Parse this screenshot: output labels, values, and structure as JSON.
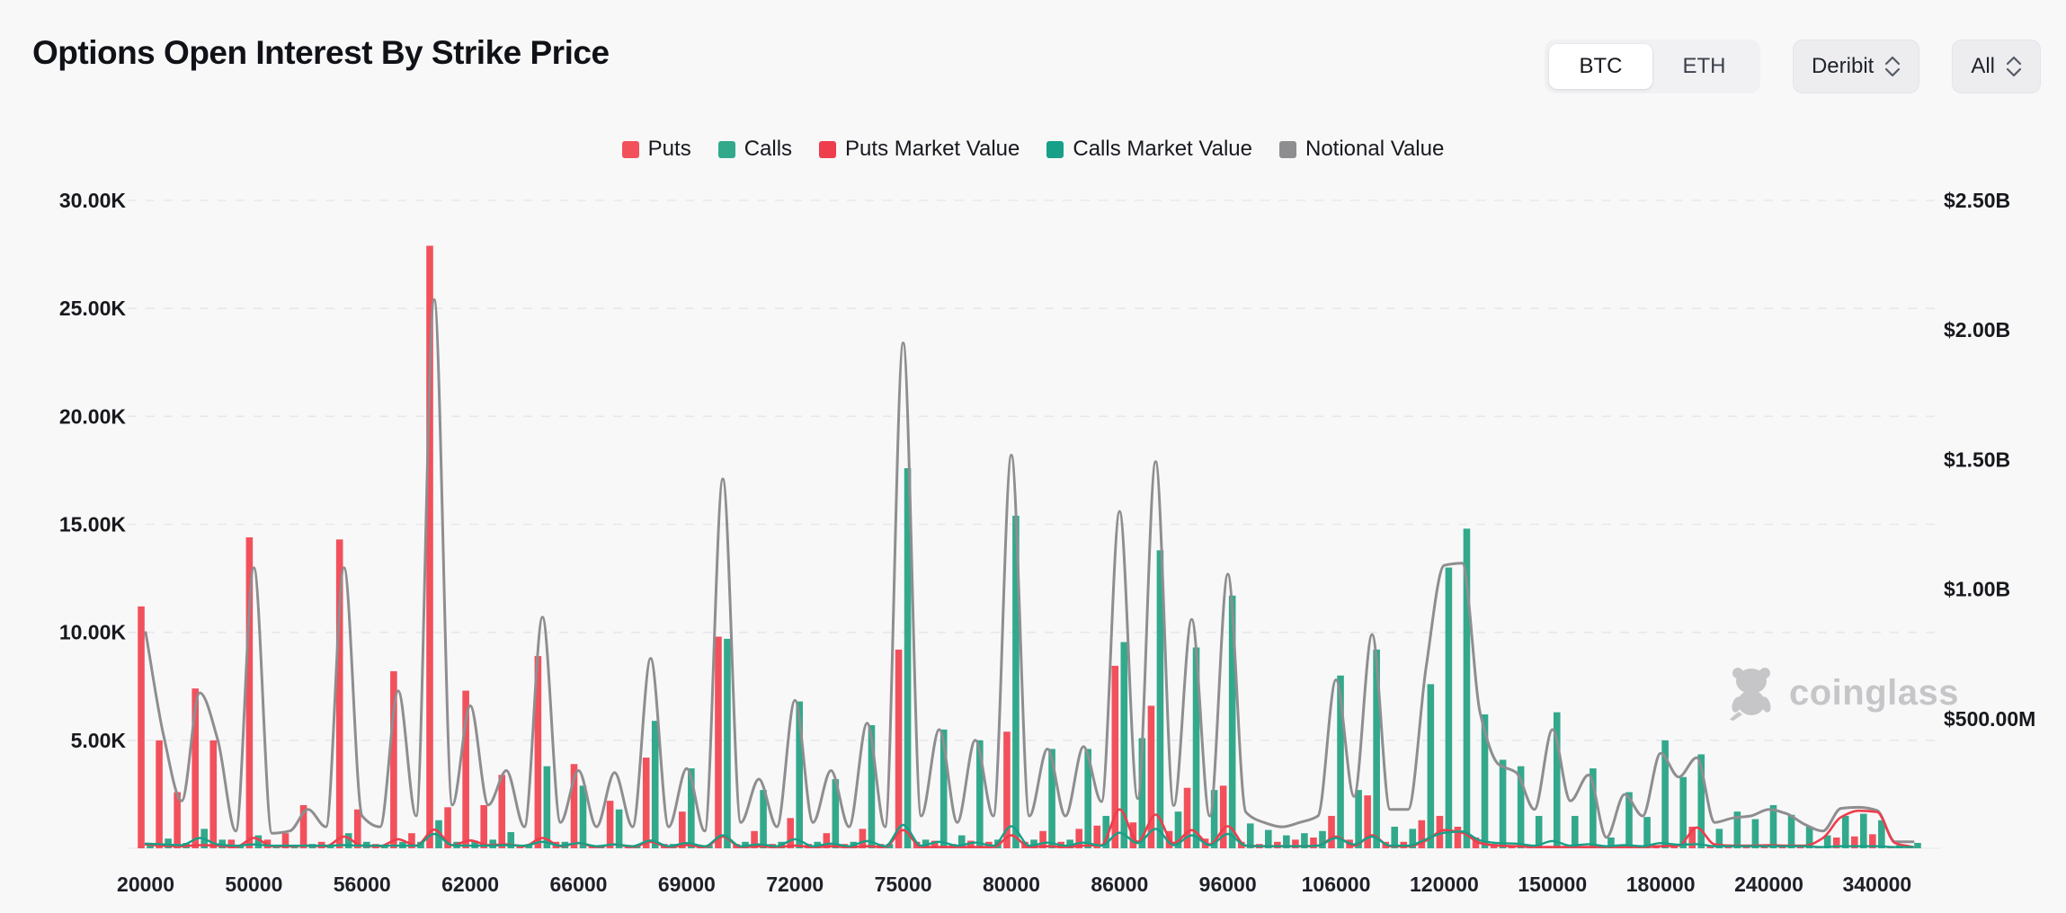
{
  "header": {
    "title": "Options Open Interest By Strike Price",
    "asset_toggle": {
      "options": [
        "BTC",
        "ETH"
      ],
      "selected": "BTC"
    },
    "exchange_select": {
      "value": "Deribit"
    },
    "range_select": {
      "value": "All"
    }
  },
  "watermark": {
    "label": "coinglass"
  },
  "colors": {
    "puts": "#F2515C",
    "calls": "#33A98C",
    "puts_mv_line": "#EE3D4C",
    "calls_mv_line": "#17A087",
    "notional_line": "#8E8E90",
    "grid": "#e8e8eb",
    "axis_text": "#17191d",
    "background": "#f8f8f9"
  },
  "chart_data": {
    "type": "bar",
    "title": "Options Open Interest By Strike Price",
    "left_axis": {
      "unit": "contracts",
      "max_k": 30,
      "tick_labels": [
        "5.00K",
        "10.00K",
        "15.00K",
        "20.00K",
        "25.00K",
        "30.00K"
      ]
    },
    "right_axis": {
      "unit": "usd",
      "max_musd": 2500,
      "tick_labels": [
        "$500.00M",
        "$1.00B",
        "$1.50B",
        "$2.00B",
        "$2.50B"
      ]
    },
    "x_tick_labels": [
      "20000",
      "50000",
      "56000",
      "62000",
      "66000",
      "69000",
      "72000",
      "75000",
      "80000",
      "86000",
      "96000",
      "106000",
      "120000",
      "150000",
      "180000",
      "240000",
      "340000"
    ],
    "tick_every": 6,
    "legend": [
      {
        "label": "Puts",
        "color": "#F2515C",
        "type": "bar"
      },
      {
        "label": "Calls",
        "color": "#33A98C",
        "type": "bar"
      },
      {
        "label": "Puts Market Value",
        "color": "#EE3D4C",
        "type": "line"
      },
      {
        "label": "Calls Market Value",
        "color": "#17A087",
        "type": "line"
      },
      {
        "label": "Notional Value",
        "color": "#8E8E90",
        "type": "line"
      }
    ],
    "series_note": "p = puts OI (thousands of contracts, left axis), c = calls OI (K), n = notional value ($M, right axis), pm = puts market value ($M), cm = calls market value ($M)",
    "strikes": [
      {
        "l": "20000",
        "p": 11.2,
        "c": 0.25,
        "n": 833,
        "pm": 15,
        "cm": 18
      },
      {
        "l": "",
        "p": 5.0,
        "c": 0.45,
        "n": 433,
        "pm": 10,
        "cm": 15
      },
      {
        "l": "",
        "p": 2.6,
        "c": 0.25,
        "n": 183,
        "pm": 8,
        "cm": 12
      },
      {
        "l": "",
        "p": 7.4,
        "c": 0.9,
        "n": 600,
        "pm": 12,
        "cm": 40
      },
      {
        "l": "",
        "p": 5.0,
        "c": 0.4,
        "n": 417,
        "pm": 10,
        "cm": 15
      },
      {
        "l": "",
        "p": 0.4,
        "c": 0.15,
        "n": 67,
        "pm": 5,
        "cm": 10
      },
      {
        "l": "50000",
        "p": 14.4,
        "c": 0.6,
        "n": 1083,
        "pm": 40,
        "cm": 15
      },
      {
        "l": "",
        "p": 0.4,
        "c": 0.1,
        "n": 58,
        "pm": 8,
        "cm": 10
      },
      {
        "l": "",
        "p": 0.7,
        "c": 0.15,
        "n": 67,
        "pm": 8,
        "cm": 10
      },
      {
        "l": "",
        "p": 2.0,
        "c": 0.2,
        "n": 150,
        "pm": 10,
        "cm": 10
      },
      {
        "l": "",
        "p": 0.3,
        "c": 0.1,
        "n": 83,
        "pm": 8,
        "cm": 10
      },
      {
        "l": "",
        "p": 14.3,
        "c": 0.7,
        "n": 1083,
        "pm": 45,
        "cm": 12
      },
      {
        "l": "56000",
        "p": 1.8,
        "c": 0.3,
        "n": 125,
        "pm": 10,
        "cm": 10
      },
      {
        "l": "",
        "p": 0.2,
        "c": 0.1,
        "n": 83,
        "pm": 8,
        "cm": 10
      },
      {
        "l": "",
        "p": 8.2,
        "c": 0.3,
        "n": 608,
        "pm": 35,
        "cm": 10
      },
      {
        "l": "",
        "p": 0.7,
        "c": 0.3,
        "n": 125,
        "pm": 10,
        "cm": 10
      },
      {
        "l": "",
        "p": 27.9,
        "c": 1.3,
        "n": 2117,
        "pm": 72,
        "cm": 55
      },
      {
        "l": "",
        "p": 1.9,
        "c": 0.3,
        "n": 167,
        "pm": 12,
        "cm": 12
      },
      {
        "l": "62000",
        "p": 7.3,
        "c": 0.35,
        "n": 550,
        "pm": 30,
        "cm": 10
      },
      {
        "l": "",
        "p": 2.0,
        "c": 0.4,
        "n": 167,
        "pm": 12,
        "cm": 10
      },
      {
        "l": "",
        "p": 3.4,
        "c": 0.75,
        "n": 300,
        "pm": 15,
        "cm": 12
      },
      {
        "l": "",
        "p": 0.15,
        "c": 0.2,
        "n": 83,
        "pm": 8,
        "cm": 10
      },
      {
        "l": "",
        "p": 8.9,
        "c": 3.8,
        "n": 892,
        "pm": 40,
        "cm": 25
      },
      {
        "l": "",
        "p": 0.3,
        "c": 0.3,
        "n": 100,
        "pm": 8,
        "cm": 10
      },
      {
        "l": "66000",
        "p": 3.9,
        "c": 2.9,
        "n": 300,
        "pm": 20,
        "cm": 20
      },
      {
        "l": "",
        "p": 0.15,
        "c": 0.1,
        "n": 83,
        "pm": 5,
        "cm": 8
      },
      {
        "l": "",
        "p": 2.2,
        "c": 1.8,
        "n": 292,
        "pm": 15,
        "cm": 15
      },
      {
        "l": "",
        "p": 0.15,
        "c": 0.15,
        "n": 83,
        "pm": 5,
        "cm": 8
      },
      {
        "l": "",
        "p": 4.2,
        "c": 5.9,
        "n": 733,
        "pm": 25,
        "cm": 30
      },
      {
        "l": "",
        "p": 0.2,
        "c": 0.2,
        "n": 83,
        "pm": 5,
        "cm": 8
      },
      {
        "l": "69000",
        "p": 1.7,
        "c": 3.7,
        "n": 308,
        "pm": 12,
        "cm": 20
      },
      {
        "l": "",
        "p": 0.1,
        "c": 0.15,
        "n": 67,
        "pm": 5,
        "cm": 8
      },
      {
        "l": "",
        "p": 9.8,
        "c": 9.7,
        "n": 1425,
        "pm": 45,
        "cm": 50
      },
      {
        "l": "",
        "p": 0.2,
        "c": 0.3,
        "n": 100,
        "pm": 5,
        "cm": 8
      },
      {
        "l": "",
        "p": 0.8,
        "c": 2.7,
        "n": 267,
        "pm": 8,
        "cm": 15
      },
      {
        "l": "",
        "p": 0.2,
        "c": 0.3,
        "n": 83,
        "pm": 5,
        "cm": 8
      },
      {
        "l": "72000",
        "p": 1.4,
        "c": 6.8,
        "n": 571,
        "pm": 10,
        "cm": 35
      },
      {
        "l": "",
        "p": 0.2,
        "c": 0.3,
        "n": 100,
        "pm": 5,
        "cm": 8
      },
      {
        "l": "",
        "p": 0.7,
        "c": 3.2,
        "n": 300,
        "pm": 8,
        "cm": 18
      },
      {
        "l": "",
        "p": 0.2,
        "c": 0.3,
        "n": 83,
        "pm": 5,
        "cm": 8
      },
      {
        "l": "",
        "p": 0.9,
        "c": 5.7,
        "n": 483,
        "pm": 8,
        "cm": 28
      },
      {
        "l": "",
        "p": 0.2,
        "c": 0.2,
        "n": 83,
        "pm": 5,
        "cm": 8
      },
      {
        "l": "75000",
        "p": 9.2,
        "c": 17.6,
        "n": 1950,
        "pm": 70,
        "cm": 90
      },
      {
        "l": "",
        "p": 0.3,
        "c": 0.4,
        "n": 125,
        "pm": 5,
        "cm": 10
      },
      {
        "l": "",
        "p": 0.35,
        "c": 5.5,
        "n": 458,
        "pm": 5,
        "cm": 25
      },
      {
        "l": "",
        "p": 0.2,
        "c": 0.6,
        "n": 100,
        "pm": 5,
        "cm": 10
      },
      {
        "l": "",
        "p": 0.35,
        "c": 5.0,
        "n": 417,
        "pm": 5,
        "cm": 22
      },
      {
        "l": "",
        "p": 0.3,
        "c": 0.4,
        "n": 125,
        "pm": 5,
        "cm": 10
      },
      {
        "l": "80000",
        "p": 5.4,
        "c": 15.4,
        "n": 1517,
        "pm": 50,
        "cm": 85
      },
      {
        "l": "",
        "p": 0.3,
        "c": 0.4,
        "n": 125,
        "pm": 5,
        "cm": 10
      },
      {
        "l": "",
        "p": 0.8,
        "c": 4.6,
        "n": 383,
        "pm": 8,
        "cm": 22
      },
      {
        "l": "",
        "p": 0.3,
        "c": 0.4,
        "n": 125,
        "pm": 5,
        "cm": 10
      },
      {
        "l": "",
        "p": 0.9,
        "c": 4.6,
        "n": 392,
        "pm": 10,
        "cm": 22
      },
      {
        "l": "",
        "p": 1.05,
        "c": 1.5,
        "n": 180,
        "pm": 12,
        "cm": 10
      },
      {
        "l": "86000",
        "p": 8.45,
        "c": 9.55,
        "n": 1300,
        "pm": 150,
        "cm": 60
      },
      {
        "l": "",
        "p": 1.2,
        "c": 5.1,
        "n": 192,
        "pm": 25,
        "cm": 20
      },
      {
        "l": "",
        "p": 6.6,
        "c": 13.8,
        "n": 1492,
        "pm": 130,
        "cm": 75
      },
      {
        "l": "",
        "p": 0.8,
        "c": 1.7,
        "n": 165,
        "pm": 20,
        "cm": 12
      },
      {
        "l": "",
        "p": 2.8,
        "c": 9.3,
        "n": 883,
        "pm": 70,
        "cm": 50
      },
      {
        "l": "",
        "p": 0.45,
        "c": 2.7,
        "n": 125,
        "pm": 15,
        "cm": 12
      },
      {
        "l": "96000",
        "p": 2.9,
        "c": 11.7,
        "n": 1058,
        "pm": 85,
        "cm": 55
      },
      {
        "l": "",
        "p": 0.3,
        "c": 1.15,
        "n": 140,
        "pm": 10,
        "cm": 10
      },
      {
        "l": "",
        "p": 0.2,
        "c": 0.85,
        "n": 100,
        "pm": 8,
        "cm": 8
      },
      {
        "l": "",
        "p": 0.3,
        "c": 0.6,
        "n": 83,
        "pm": 8,
        "cm": 8
      },
      {
        "l": "",
        "p": 0.4,
        "c": 0.7,
        "n": 100,
        "pm": 8,
        "cm": 8
      },
      {
        "l": "",
        "p": 0.5,
        "c": 0.8,
        "n": 125,
        "pm": 10,
        "cm": 10
      },
      {
        "l": "106000",
        "p": 1.5,
        "c": 8.0,
        "n": 650,
        "pm": 45,
        "cm": 40
      },
      {
        "l": "",
        "p": 0.4,
        "c": 2.7,
        "n": 200,
        "pm": 10,
        "cm": 15
      },
      {
        "l": "",
        "p": 2.45,
        "c": 9.2,
        "n": 825,
        "pm": 50,
        "cm": 45
      },
      {
        "l": "",
        "p": 0.3,
        "c": 1.0,
        "n": 150,
        "pm": 8,
        "cm": 10
      },
      {
        "l": "",
        "p": 0.3,
        "c": 0.9,
        "n": 150,
        "pm": 8,
        "cm": 10
      },
      {
        "l": "",
        "p": 1.3,
        "c": 7.6,
        "n": 700,
        "pm": 30,
        "cm": 35
      },
      {
        "l": "120000",
        "p": 1.5,
        "c": 13.0,
        "n": 1092,
        "pm": 70,
        "cm": 60
      },
      {
        "l": "",
        "p": 1.0,
        "c": 14.8,
        "n": 1100,
        "pm": 60,
        "cm": 65
      },
      {
        "l": "",
        "p": 0.5,
        "c": 6.2,
        "n": 520,
        "pm": 20,
        "cm": 30
      },
      {
        "l": "",
        "p": 0.2,
        "c": 4.1,
        "n": 325,
        "pm": 10,
        "cm": 20
      },
      {
        "l": "",
        "p": 0.15,
        "c": 3.8,
        "n": 292,
        "pm": 8,
        "cm": 18
      },
      {
        "l": "",
        "p": 0.15,
        "c": 1.5,
        "n": 150,
        "pm": 5,
        "cm": 10
      },
      {
        "l": "150000",
        "p": 0.1,
        "c": 6.3,
        "n": 458,
        "pm": 5,
        "cm": 28
      },
      {
        "l": "",
        "p": 0.1,
        "c": 1.5,
        "n": 183,
        "pm": 5,
        "cm": 10
      },
      {
        "l": "",
        "p": 0.1,
        "c": 3.7,
        "n": 283,
        "pm": 5,
        "cm": 16
      },
      {
        "l": "",
        "p": 0.1,
        "c": 0.5,
        "n": 42,
        "pm": 5,
        "cm": 8
      },
      {
        "l": "",
        "p": 0.1,
        "c": 2.6,
        "n": 208,
        "pm": 5,
        "cm": 12
      },
      {
        "l": "",
        "p": 0.1,
        "c": 1.45,
        "n": 125,
        "pm": 5,
        "cm": 8
      },
      {
        "l": "180000",
        "p": 0.15,
        "c": 5.0,
        "n": 367,
        "pm": 8,
        "cm": 20
      },
      {
        "l": "",
        "p": 0.2,
        "c": 3.3,
        "n": 275,
        "pm": 10,
        "cm": 14
      },
      {
        "l": "",
        "p": 1.0,
        "c": 4.35,
        "n": 350,
        "pm": 80,
        "cm": 16
      },
      {
        "l": "",
        "p": 0.1,
        "c": 0.9,
        "n": 100,
        "pm": 15,
        "cm": 8
      },
      {
        "l": "",
        "p": 0.1,
        "c": 1.7,
        "n": 117,
        "pm": 10,
        "cm": 8
      },
      {
        "l": "",
        "p": 0.1,
        "c": 1.35,
        "n": 125,
        "pm": 10,
        "cm": 8
      },
      {
        "l": "240000",
        "p": 0.1,
        "c": 2.0,
        "n": 150,
        "pm": 12,
        "cm": 8
      },
      {
        "l": "",
        "p": 0.1,
        "c": 1.55,
        "n": 133,
        "pm": 10,
        "cm": 8
      },
      {
        "l": "",
        "p": 0.1,
        "c": 1.0,
        "n": 92,
        "pm": 10,
        "cm": 8
      },
      {
        "l": "",
        "p": 0.1,
        "c": 0.6,
        "n": 67,
        "pm": 40,
        "cm": 5
      },
      {
        "l": "",
        "p": 0.5,
        "c": 1.5,
        "n": 154,
        "pm": 120,
        "cm": 8
      },
      {
        "l": "",
        "p": 0.55,
        "c": 1.6,
        "n": 158,
        "pm": 145,
        "cm": 8
      },
      {
        "l": "340000",
        "p": 0.65,
        "c": 1.3,
        "n": 146,
        "pm": 140,
        "cm": 8
      },
      {
        "l": "",
        "p": 0.05,
        "c": 0.15,
        "n": 25,
        "pm": 20,
        "cm": 5
      },
      {
        "l": "",
        "p": 0.05,
        "c": 0.25,
        "n": 25,
        "pm": 5,
        "cm": 5
      }
    ]
  }
}
